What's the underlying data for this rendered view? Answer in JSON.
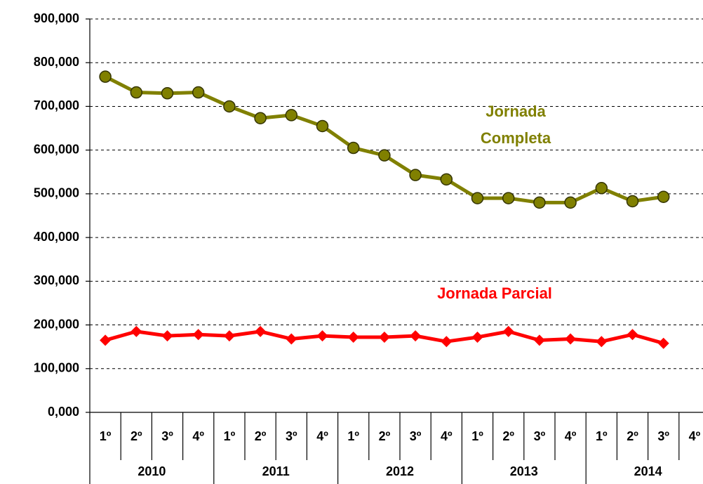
{
  "chart_data": {
    "type": "line",
    "categories": [
      "1º",
      "2º",
      "3º",
      "4º",
      "1º",
      "2º",
      "3º",
      "4º",
      "1º",
      "2º",
      "3º",
      "4º",
      "1º",
      "2º",
      "3º",
      "4º",
      "1º",
      "2º",
      "3º",
      "4º"
    ],
    "year_groups": [
      "2010",
      "2011",
      "2012",
      "2013",
      "2014"
    ],
    "series": [
      {
        "name": "Jornada Completa",
        "color": "#808000",
        "marker": "circle",
        "values": [
          768000,
          732000,
          730000,
          732000,
          700000,
          673000,
          680000,
          655000,
          605000,
          588000,
          543000,
          533000,
          490000,
          490000,
          480000,
          480000,
          513000,
          483000,
          493000,
          null
        ]
      },
      {
        "name": "Jornada Parcial",
        "color": "#ff0000",
        "marker": "diamond",
        "values": [
          165000,
          185000,
          175000,
          178000,
          175000,
          185000,
          168000,
          175000,
          172000,
          172000,
          175000,
          162000,
          172000,
          185000,
          165000,
          168000,
          162000,
          178000,
          158000,
          null
        ]
      }
    ],
    "annotations": [
      [
        "Jornada",
        "Completa"
      ],
      [
        "Jornada Parcial"
      ]
    ],
    "ylim": [
      0,
      900000
    ],
    "yticks": [
      {
        "value": 0,
        "label": "0,000"
      },
      {
        "value": 100000,
        "label": "100,000"
      },
      {
        "value": 200000,
        "label": "200,000"
      },
      {
        "value": 300000,
        "label": "300,000"
      },
      {
        "value": 400000,
        "label": "400,000"
      },
      {
        "value": 500000,
        "label": "500,000"
      },
      {
        "value": 600000,
        "label": "600,000"
      },
      {
        "value": 700000,
        "label": "700,000"
      },
      {
        "value": 800000,
        "label": "800,000"
      },
      {
        "value": 900000,
        "label": "900,000"
      }
    ],
    "grid": true
  }
}
